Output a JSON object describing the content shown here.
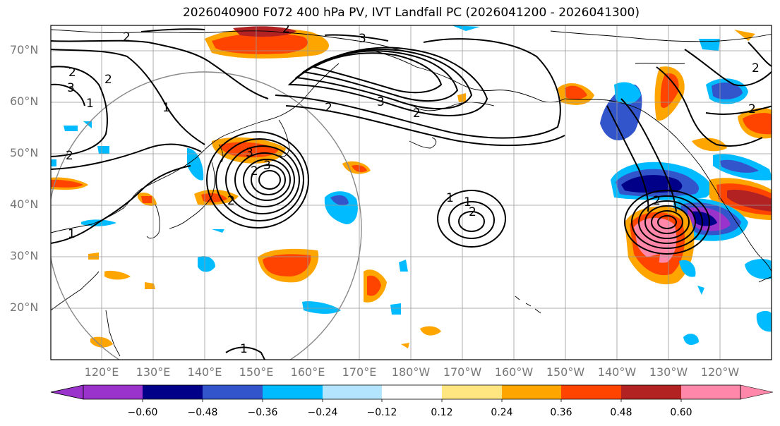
{
  "title": "2026040900 F072 400 hPa PV, IVT Landfall PC (2026041200 - 2026041300)",
  "latitude_labels": [
    "70°N",
    "60°N",
    "50°N",
    "40°N",
    "30°N",
    "20°N"
  ],
  "longitude_labels": [
    "120°E",
    "130°E",
    "140°E",
    "150°E",
    "160°E",
    "170°E",
    "180°W",
    "170°W",
    "160°W",
    "150°W",
    "140°W",
    "130°W",
    "120°W"
  ],
  "contour_labels": [
    "1",
    "2",
    "3"
  ],
  "colorbar": {
    "ticks": [
      "−0.60",
      "−0.48",
      "−0.36",
      "−0.24",
      "−0.12",
      "0.12",
      "0.24",
      "0.36",
      "0.48",
      "0.60"
    ],
    "colors": [
      "#9933cc",
      "#000088",
      "#3355cc",
      "#00bbff",
      "#b3e5ff",
      "#ffffff",
      "#ffe680",
      "#ffa500",
      "#ff4400",
      "#b22222",
      "#ff88aa"
    ]
  },
  "colors": {
    "land_outline": "#000000",
    "grid": "#999999",
    "contour": "#000000",
    "circle": "#888888",
    "axis_label": "#777777"
  }
}
